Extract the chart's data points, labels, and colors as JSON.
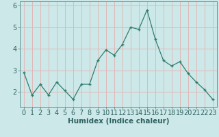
{
  "x": [
    0,
    1,
    2,
    3,
    4,
    5,
    6,
    7,
    8,
    9,
    10,
    11,
    12,
    13,
    14,
    15,
    16,
    17,
    18,
    19,
    20,
    21,
    22,
    23
  ],
  "y": [
    2.9,
    1.85,
    2.35,
    1.85,
    2.45,
    2.05,
    1.65,
    2.35,
    2.35,
    3.45,
    3.95,
    3.7,
    4.2,
    5.0,
    4.9,
    5.8,
    4.45,
    3.45,
    3.2,
    3.4,
    2.85,
    2.45,
    2.1,
    1.65
  ],
  "line_color": "#2e7d6e",
  "marker": "+",
  "marker_size": 3.5,
  "marker_edge_width": 1.0,
  "line_width": 0.9,
  "xlabel": "Humidex (Indice chaleur)",
  "ylim": [
    1.3,
    6.2
  ],
  "xlim": [
    -0.5,
    23.5
  ],
  "yticks": [
    2,
    3,
    4,
    5,
    6
  ],
  "xticks": [
    0,
    1,
    2,
    3,
    4,
    5,
    6,
    7,
    8,
    9,
    10,
    11,
    12,
    13,
    14,
    15,
    16,
    17,
    18,
    19,
    20,
    21,
    22,
    23
  ],
  "bg_color": "#cde8e8",
  "grid_color": "#e0b8b8",
  "tick_label_color": "#2e6060",
  "xlabel_color": "#2e6060",
  "xlabel_fontsize": 7.5,
  "tick_fontsize": 7.0,
  "spine_color": "#5a9090"
}
